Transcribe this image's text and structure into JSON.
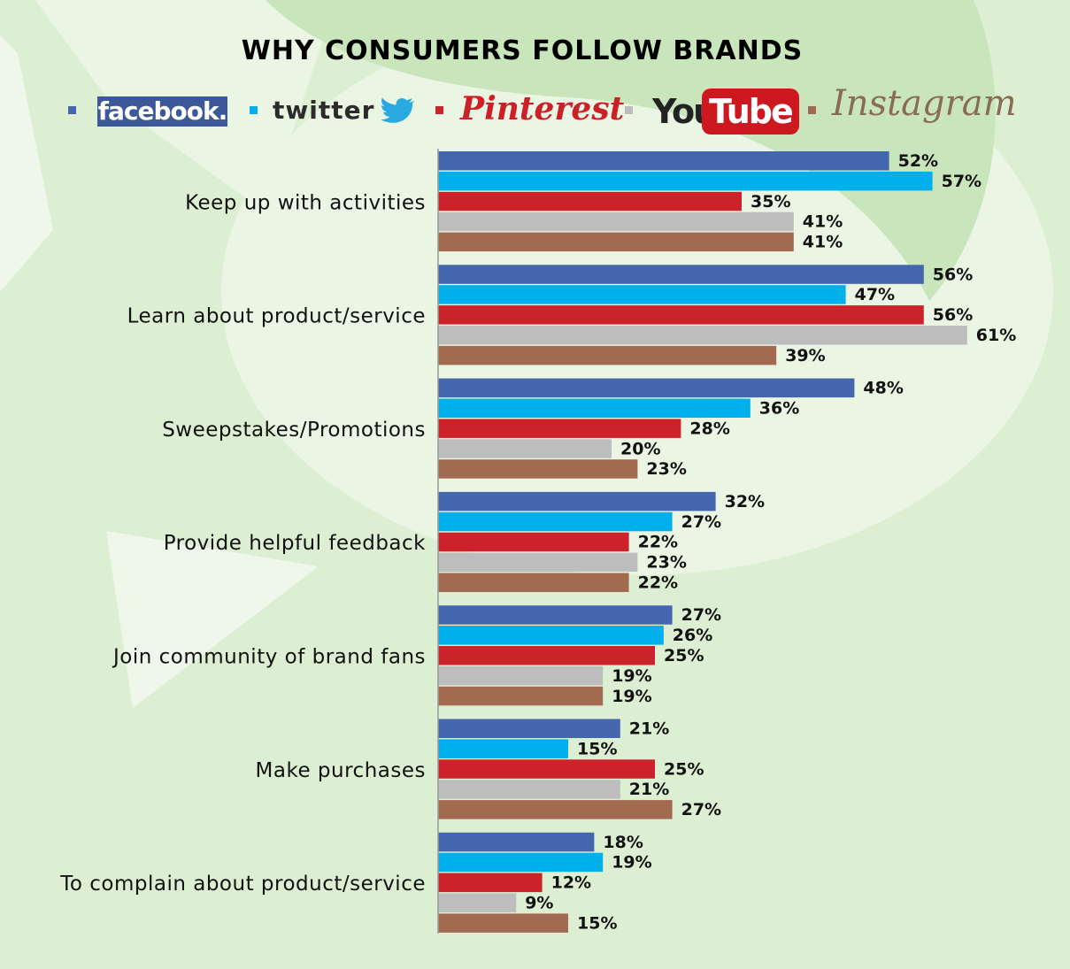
{
  "colors": {
    "background": "#dcefd2",
    "facebook": "#4466ae",
    "twitter": "#00b0ec",
    "pinterest": "#cc2229",
    "youtube": "#bdbdbd",
    "instagram": "#a26a50"
  },
  "legend": {
    "facebook": {
      "text": "facebook.",
      "color": "#4466ae"
    },
    "twitter": {
      "text": "twitter",
      "icon": "twitter-bird-icon",
      "color": "#00b0ec"
    },
    "pinterest": {
      "text": "Pinterest",
      "color": "#cc2229"
    },
    "youtube": {
      "text_you": "You",
      "text_tube": "Tube",
      "color": "#bdbdbd"
    },
    "instagram": {
      "text": "Instagram",
      "color": "#a26a50"
    }
  },
  "chart_data": {
    "type": "bar",
    "orientation": "horizontal",
    "title": "WHY CONSUMERS FOLLOW BRANDS",
    "categories": [
      "Keep up with activities",
      "Learn about product/service",
      "Sweepstakes/Promotions",
      "Provide helpful feedback",
      "Join community of brand fans",
      "Make purchases",
      "To complain about product/service"
    ],
    "series": [
      {
        "name": "Facebook",
        "color": "#4466ae",
        "values": [
          52,
          56,
          48,
          32,
          27,
          21,
          18
        ]
      },
      {
        "name": "Twitter",
        "color": "#00b0ec",
        "values": [
          57,
          47,
          36,
          27,
          26,
          15,
          19
        ]
      },
      {
        "name": "Pinterest",
        "color": "#cc2229",
        "values": [
          35,
          56,
          28,
          22,
          25,
          25,
          12
        ]
      },
      {
        "name": "YouTube",
        "color": "#bdbdbd",
        "values": [
          41,
          61,
          20,
          23,
          19,
          21,
          9
        ]
      },
      {
        "name": "Instagram",
        "color": "#a26a50",
        "values": [
          41,
          39,
          23,
          22,
          19,
          27,
          15
        ]
      }
    ],
    "value_suffix": "%",
    "xlim": [
      0,
      61
    ],
    "legend_position": "top",
    "grid": false,
    "xaxis_visible": false
  }
}
